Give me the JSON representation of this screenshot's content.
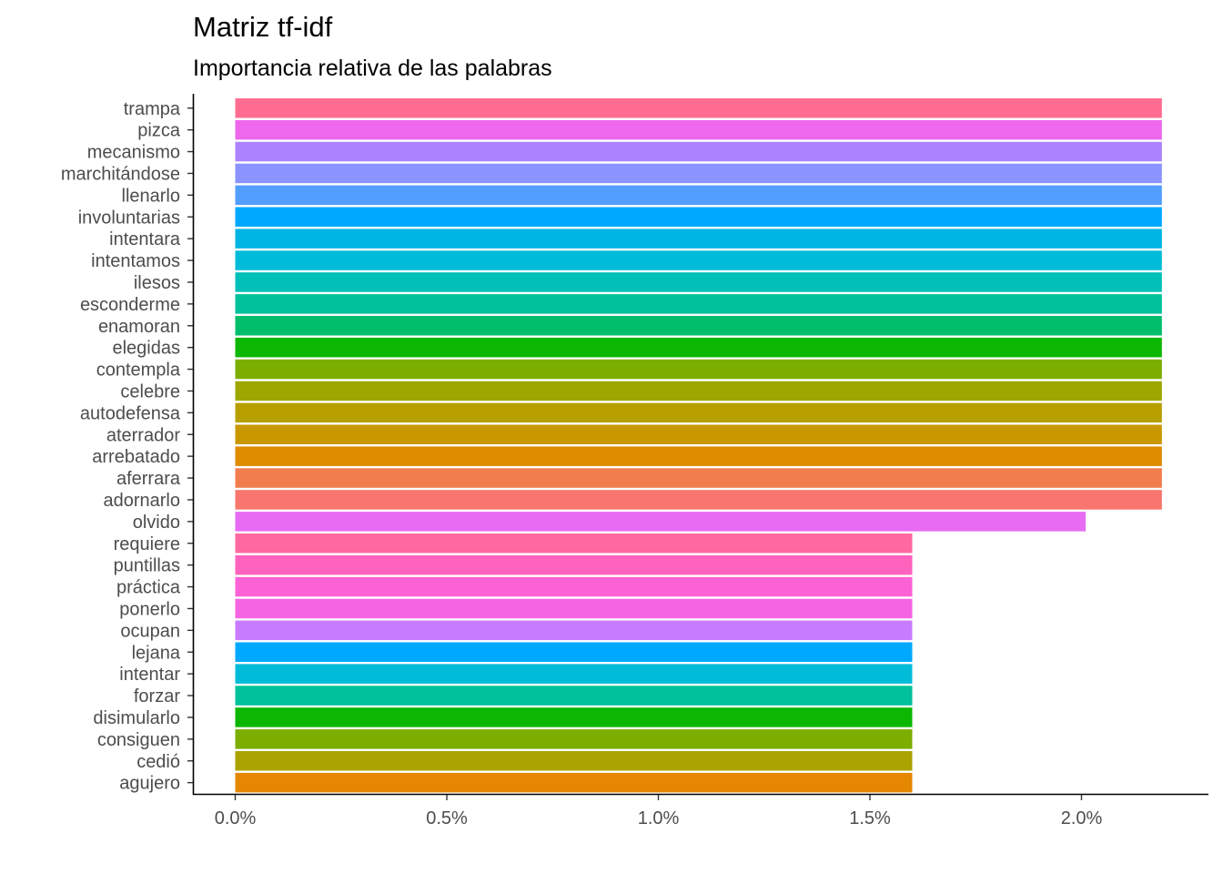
{
  "chart_data": {
    "type": "bar",
    "orientation": "horizontal",
    "title": "Matriz tf-idf",
    "subtitle": "Importancia relativa de las palabras",
    "xlabel": "",
    "ylabel": "",
    "xlim": [
      -0.1,
      2.3
    ],
    "x_ticks": [
      0,
      0.5,
      1.0,
      1.5,
      2.0
    ],
    "x_tick_labels": [
      "0.0%",
      "0.5%",
      "1.0%",
      "1.5%",
      "2.0%"
    ],
    "grid": false,
    "legend": "none",
    "bars": [
      {
        "label": "trampa",
        "value": 2.19,
        "color": "#FF6C91"
      },
      {
        "label": "pizca",
        "value": 2.19,
        "color": "#ED68ED"
      },
      {
        "label": "mecanismo",
        "value": 2.19,
        "color": "#AB82FF"
      },
      {
        "label": "marchitándose",
        "value": 2.19,
        "color": "#8B93FF"
      },
      {
        "label": "llenarlo",
        "value": 2.19,
        "color": "#529EFF"
      },
      {
        "label": "involuntarias",
        "value": 2.19,
        "color": "#00A9FF"
      },
      {
        "label": "intentara",
        "value": 2.19,
        "color": "#00B4E4"
      },
      {
        "label": "intentamos",
        "value": 2.19,
        "color": "#00BCD8"
      },
      {
        "label": "ilesos",
        "value": 2.19,
        "color": "#00C0B8"
      },
      {
        "label": "esconderme",
        "value": 2.19,
        "color": "#00C19A"
      },
      {
        "label": "enamoran",
        "value": 2.19,
        "color": "#00BE6C"
      },
      {
        "label": "elegidas",
        "value": 2.19,
        "color": "#0CB702"
      },
      {
        "label": "contempla",
        "value": 2.19,
        "color": "#7CAE00"
      },
      {
        "label": "celebre",
        "value": 2.19,
        "color": "#9DA700"
      },
      {
        "label": "autodefensa",
        "value": 2.19,
        "color": "#B79F00"
      },
      {
        "label": "aterrador",
        "value": 2.19,
        "color": "#C99800"
      },
      {
        "label": "arrebatado",
        "value": 2.19,
        "color": "#DE8C00"
      },
      {
        "label": "aferrara",
        "value": 2.19,
        "color": "#F17D4F"
      },
      {
        "label": "adornarlo",
        "value": 2.19,
        "color": "#F8766D"
      },
      {
        "label": "olvido",
        "value": 2.01,
        "color": "#E76BF3"
      },
      {
        "label": "requiere",
        "value": 1.6,
        "color": "#FF68A1"
      },
      {
        "label": "puntillas",
        "value": 1.6,
        "color": "#FF62BC"
      },
      {
        "label": "práctica",
        "value": 1.6,
        "color": "#FC61D5"
      },
      {
        "label": "ponerlo",
        "value": 1.6,
        "color": "#F564E3"
      },
      {
        "label": "ocupan",
        "value": 1.6,
        "color": "#C77CFF"
      },
      {
        "label": "lejana",
        "value": 1.6,
        "color": "#00A9FF"
      },
      {
        "label": "intentar",
        "value": 1.6,
        "color": "#00BCD8"
      },
      {
        "label": "forzar",
        "value": 1.6,
        "color": "#00C19A"
      },
      {
        "label": "disimularlo",
        "value": 1.6,
        "color": "#0CB702"
      },
      {
        "label": "consiguen",
        "value": 1.6,
        "color": "#7CAE00"
      },
      {
        "label": "cedió",
        "value": 1.6,
        "color": "#ABA300"
      },
      {
        "label": "agujero",
        "value": 1.6,
        "color": "#E58700"
      }
    ]
  }
}
